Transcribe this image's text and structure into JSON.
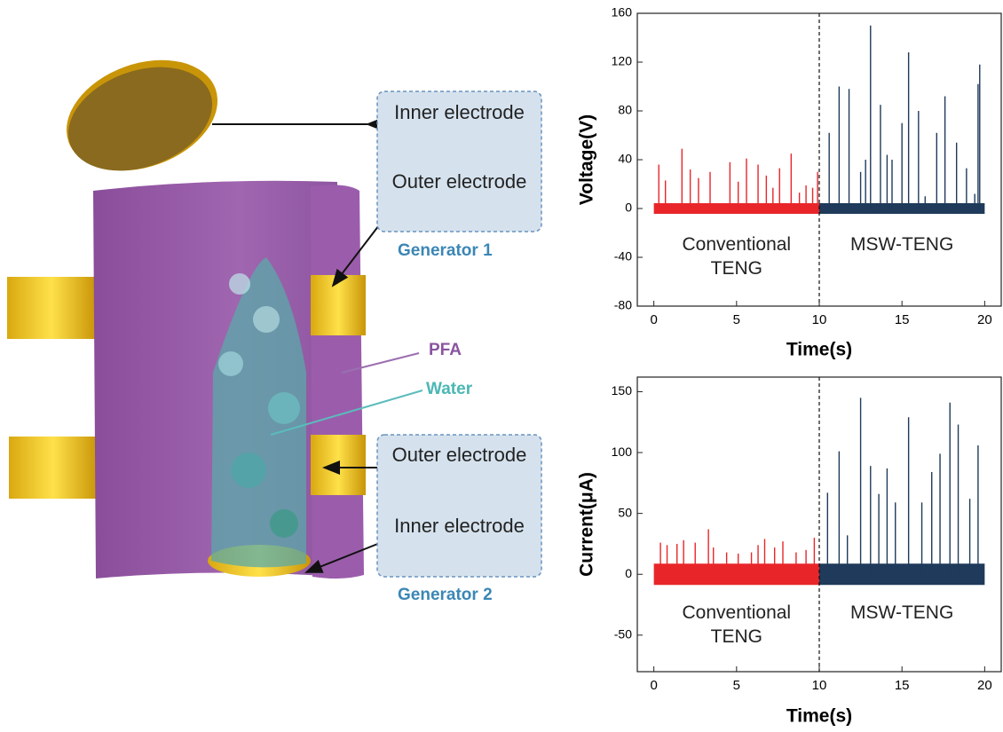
{
  "diagram": {
    "labels": [
      "Inner electrode",
      "Outer electrode",
      "Generator 1",
      "PFA",
      "Water",
      "Outer electrode",
      "Inner electrode",
      "Generator 2"
    ]
  },
  "chart_data": [
    {
      "type": "spike",
      "ylabel": "Voltage(V)",
      "xlabel": "Time(s)",
      "xlim": [
        -1,
        21
      ],
      "xticks": [
        0,
        5,
        10,
        15,
        20
      ],
      "ylim": [
        -80,
        160
      ],
      "yticks": [
        -80,
        -40,
        0,
        40,
        80,
        120,
        160
      ],
      "vlines": [
        10
      ],
      "series": [
        {
          "name": "Conventional TENG",
          "color": "#e8262a",
          "x": [
            0,
            0.3,
            0.7,
            1.7,
            2.2,
            2.7,
            3.4,
            4.6,
            5.1,
            5.6,
            6.3,
            6.8,
            7.2,
            7.6,
            8.3,
            8.8,
            9.2,
            9.6,
            9.9,
            10
          ],
          "values": [
            0,
            36,
            23,
            49,
            32,
            25,
            30,
            38,
            22,
            41,
            36,
            27,
            17,
            33,
            45,
            13,
            19,
            17,
            30,
            0
          ]
        },
        {
          "name": "MSW-TENG",
          "color": "#1f3a5a",
          "x": [
            10,
            10.6,
            11.2,
            11.8,
            12.5,
            12.8,
            13.1,
            13.7,
            14.1,
            14.4,
            15.0,
            15.4,
            16.0,
            16.4,
            17.1,
            17.6,
            18.3,
            18.9,
            19.4,
            19.6,
            19.7,
            20
          ],
          "values": [
            0,
            62,
            100,
            98,
            30,
            40,
            150,
            85,
            44,
            40,
            70,
            128,
            80,
            10,
            62,
            92,
            54,
            33,
            12,
            102,
            118,
            0
          ]
        }
      ]
    },
    {
      "type": "spike",
      "ylabel": "Current(μA)",
      "xlabel": "Time(s)",
      "xlim": [
        -1,
        21
      ],
      "xticks": [
        0,
        5,
        10,
        15,
        20
      ],
      "ylim": [
        -80,
        162
      ],
      "yticks": [
        -50,
        0,
        50,
        100,
        150
      ],
      "vlines": [
        10
      ],
      "series": [
        {
          "name": "Conventional TENG",
          "color": "#e8262a",
          "x": [
            0,
            0.4,
            0.8,
            1.4,
            1.8,
            2.5,
            3.3,
            3.6,
            4.4,
            5.1,
            5.9,
            6.3,
            6.7,
            7.3,
            7.8,
            8.6,
            9.2,
            9.7,
            10
          ],
          "values": [
            0,
            26,
            24,
            25,
            28,
            26,
            37,
            22,
            18,
            17,
            18,
            24,
            29,
            22,
            27,
            18,
            20,
            30,
            0
          ]
        },
        {
          "name": "MSW-TENG",
          "color": "#1f3a5a",
          "x": [
            10,
            10.5,
            11.2,
            11.7,
            12.5,
            13.1,
            13.6,
            14.1,
            14.6,
            15.4,
            16.2,
            16.8,
            17.3,
            17.9,
            18.4,
            19.1,
            19.6,
            20
          ],
          "values": [
            0,
            67,
            101,
            32,
            145,
            89,
            66,
            87,
            59,
            129,
            59,
            84,
            99,
            141,
            123,
            62,
            106,
            0
          ]
        }
      ]
    }
  ]
}
